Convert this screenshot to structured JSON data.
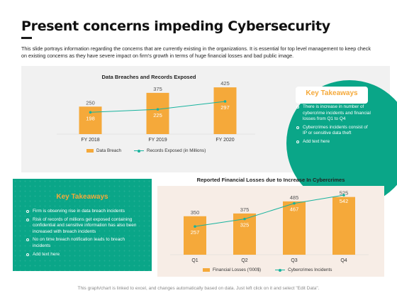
{
  "slide": {
    "title": "Present concerns impeding Cybersecurity",
    "intro": "This slide portrays information regarding the concerns that are currently existing in the organizations. It is essential for top level management to keep check on existing concerns as they have severe impact on firm's growth in terms of huge financial losses and bad public image.",
    "footer": "This graph/chart is linked to excel, and changes automatically based on data. Just left click on it and select \"Edit Data\"."
  },
  "key_takeaways_right": {
    "title": "Key Takeaways",
    "items": [
      "There is increase in number of cybercrime incidents and financial losses from Q1 to Q4",
      "Cybercrimes incidents consist of IP or sensitive data theft",
      "Add text here"
    ]
  },
  "key_takeaways_left": {
    "title": "Key Takeaways",
    "items": [
      "Firm is observing rise in data breach incidents",
      "Risk of records of millions get exposed containing confidential and sensitive information has also been increased with breach incidents",
      "No on time breach notification leads to breach incidents",
      "Add text here"
    ]
  },
  "colors": {
    "bar": "#f5a93a",
    "line": "#18b39e",
    "teal": "#0aa688"
  },
  "chart_data": [
    {
      "type": "bar",
      "title": "Data Breaches and Records Exposed",
      "categories": [
        "FY 2018",
        "FY 2019",
        "FY 2020"
      ],
      "series": [
        {
          "name": "Data Breach",
          "type": "bar",
          "values": [
            250,
            375,
            425
          ]
        },
        {
          "name": "Records Exposed (in Millions)",
          "type": "line",
          "values": [
            198,
            225,
            297
          ]
        }
      ],
      "legend": "bottom"
    },
    {
      "type": "bar",
      "title": "Reported Financial Losses due to Increase In Cybercrimes",
      "categories": [
        "Q1",
        "Q2",
        "Q3",
        "Q4"
      ],
      "series": [
        {
          "name": "Financial Losses ('000$)",
          "type": "bar",
          "values": [
            350,
            375,
            485,
            525
          ]
        },
        {
          "name": "Cybercrimes Incidents",
          "type": "line",
          "values": [
            257,
            325,
            467,
            542
          ]
        }
      ],
      "legend": "bottom"
    }
  ]
}
